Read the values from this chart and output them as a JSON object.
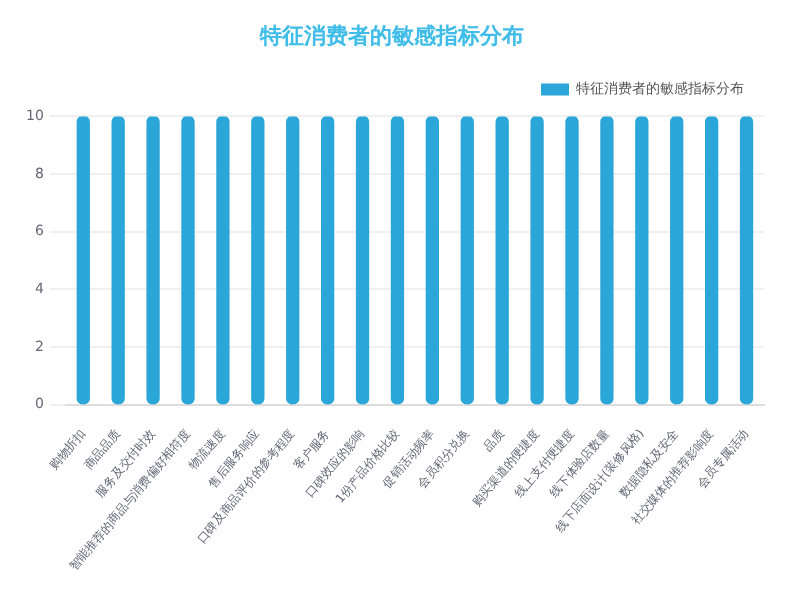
{
  "chart_data": {
    "type": "bar",
    "title": "特征消费者的敏感指标分布",
    "categories": [
      "购物折扣",
      "商品品质",
      "服务及交付时效",
      "智能推荐的商品与消费偏好相符度",
      "物流速度",
      "售后服务响应",
      "口碑及商品评价的参考程度",
      "客户服务",
      "口碑效应的影响",
      "1份产品价格比较",
      "促销活动频率",
      "会员积分兑换",
      "品质",
      "购买渠道的便捷度",
      "线上支付便捷度",
      "线下体验店数量",
      "线下店面设计(装修风格)",
      "数据隐私及安全",
      "社交媒体的推荐影响度",
      "会员专属活动"
    ],
    "series": [
      {
        "name": "特征消费者的敏感指标分布",
        "color": "#2ba6d8",
        "values": [
          10,
          10,
          10,
          10,
          10,
          10,
          10,
          10,
          10,
          10,
          10,
          10,
          10,
          10,
          10,
          10,
          10,
          10,
          10,
          10
        ]
      }
    ],
    "ylim": [
      0,
      10
    ],
    "yticks": [
      0,
      2,
      4,
      6,
      8,
      10
    ],
    "grid": "y",
    "legend": "top right"
  }
}
